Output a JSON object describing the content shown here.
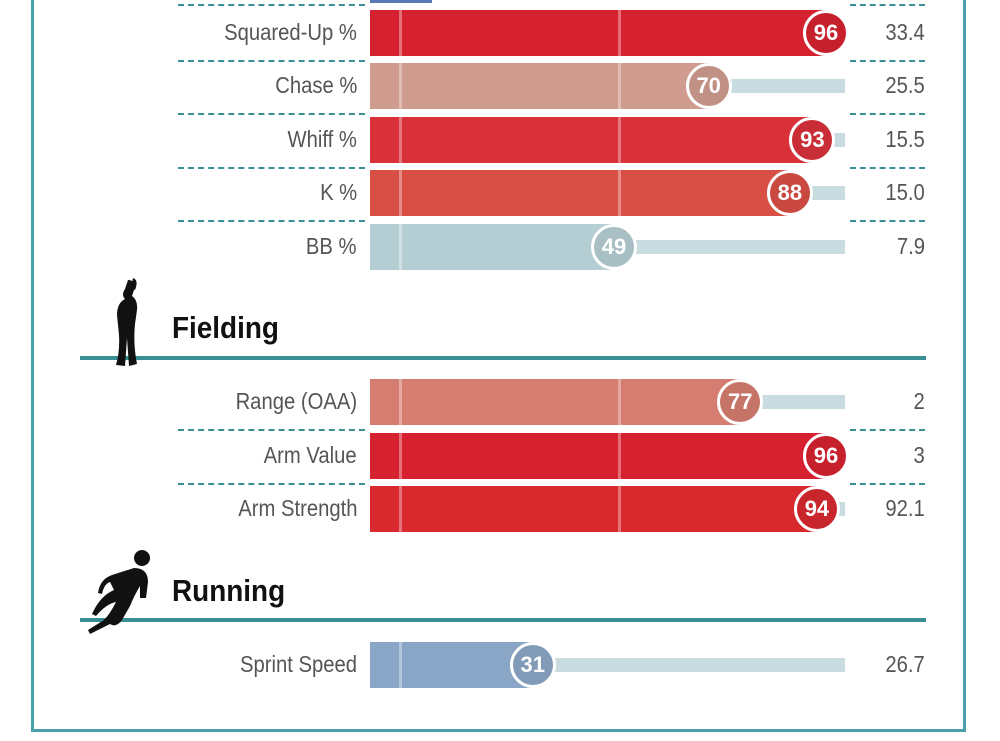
{
  "chart_data": {
    "type": "bar",
    "orientation": "horizontal",
    "scale": "percentile 0-100",
    "sections": [
      {
        "title": "",
        "rows": [
          {
            "label": "Squared-Up %",
            "percentile": 96,
            "value": "33.4",
            "color": "#d62230"
          },
          {
            "label": "Chase %",
            "percentile": 70,
            "value": "25.5",
            "color": "#d09c90"
          },
          {
            "label": "Whiff %",
            "percentile": 93,
            "value": "15.5",
            "color": "#d8313a"
          },
          {
            "label": "K %",
            "percentile": 88,
            "value": "15.0",
            "color": "#d84f45"
          },
          {
            "label": "BB %",
            "percentile": 49,
            "value": "7.9",
            "color": "#b5ced3"
          }
        ]
      },
      {
        "title": "Fielding",
        "icon": "fielder-silhouette-icon",
        "rows": [
          {
            "label": "Range (OAA)",
            "percentile": 77,
            "value": "2",
            "color": "#d57d70"
          },
          {
            "label": "Arm Value",
            "percentile": 96,
            "value": "3",
            "color": "#d62230"
          },
          {
            "label": "Arm Strength",
            "percentile": 94,
            "value": "92.1",
            "color": "#d8292f"
          }
        ]
      },
      {
        "title": "Running",
        "icon": "runner-silhouette-icon",
        "rows": [
          {
            "label": "Sprint Speed",
            "percentile": 31,
            "value": "26.7",
            "color": "#8aa6c6"
          }
        ]
      }
    ]
  },
  "colors": {
    "frame": "#4aa0a8",
    "divider": "#3a8f94",
    "track": "#c9dde0",
    "partial_bar_above": "#5a78b8"
  }
}
